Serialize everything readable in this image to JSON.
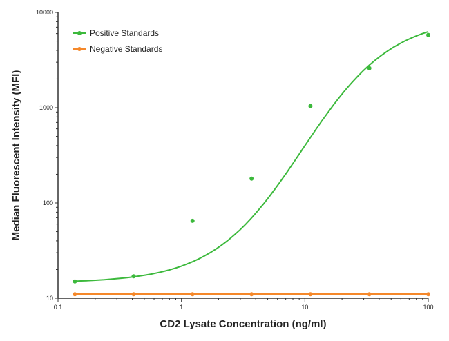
{
  "chart_data": {
    "type": "scatter",
    "title": "",
    "xlabel": "CD2 Lysate Concentration (ng/ml)",
    "ylabel": "Median  Fluorescent Intensity  (MFI)",
    "xscale": "log",
    "yscale": "log",
    "xlim": [
      0.1,
      100
    ],
    "ylim": [
      10,
      10000
    ],
    "x_ticks": [
      "0.1",
      "1",
      "10",
      "100"
    ],
    "y_ticks": [
      "10",
      "100",
      "1000",
      "10000"
    ],
    "grid": false,
    "legend_position": "top-left",
    "series": [
      {
        "name": "Positive Standards",
        "color": "#3cb93c",
        "x": [
          0.137,
          0.41,
          1.23,
          3.7,
          11.1,
          33.3,
          100
        ],
        "y": [
          15,
          17,
          65,
          180,
          1040,
          2600,
          5800
        ],
        "curve": "fit"
      },
      {
        "name": "Negative Standards",
        "color": "#f5882a",
        "x": [
          0.137,
          0.41,
          1.23,
          3.7,
          11.1,
          33.3,
          100
        ],
        "y": [
          11,
          11,
          11,
          11,
          11,
          11,
          11
        ],
        "curve": "line"
      }
    ]
  }
}
